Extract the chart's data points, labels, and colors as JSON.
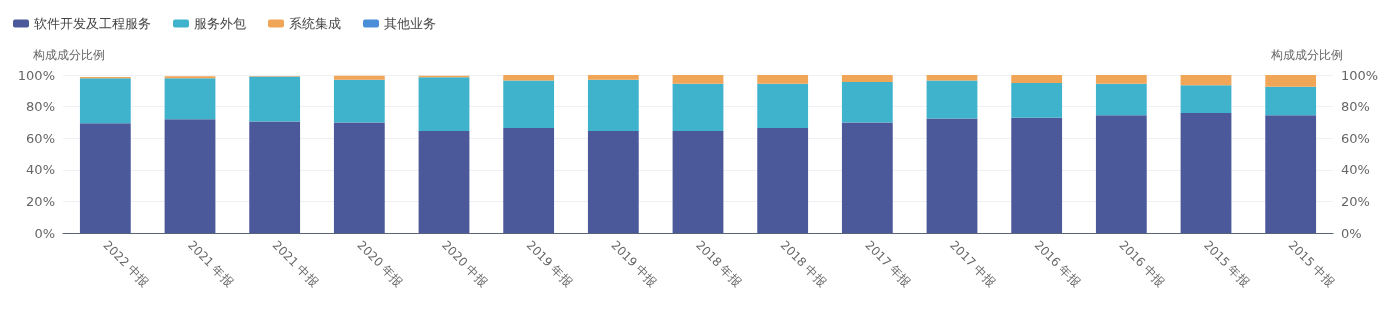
{
  "chart_data": {
    "type": "bar",
    "stacked": true,
    "ylabel": "构成成分比例",
    "y2label": "构成成分比例",
    "categories": [
      "2022 中报",
      "2021 年报",
      "2021 中报",
      "2020 年报",
      "2020 中报",
      "2019 年报",
      "2019 中报",
      "2018 年报",
      "2018 中报",
      "2017 年报",
      "2017 中报",
      "2016 年报",
      "2016 中报",
      "2015 年报",
      "2015 中报"
    ],
    "series": [
      {
        "name": "软件开发及工程服务",
        "color": "#4b5899",
        "values": [
          69.5,
          72,
          70.5,
          70,
          64.5,
          66.5,
          64.5,
          64.5,
          66.5,
          70,
          72.5,
          73,
          74.5,
          76,
          74.5
        ]
      },
      {
        "name": "服务外包",
        "color": "#3fb3cc",
        "values": [
          28.5,
          26,
          28.5,
          27,
          34,
          30,
          32.5,
          30,
          28,
          25.5,
          24,
          22,
          20,
          17.5,
          18
        ]
      },
      {
        "name": "系统集成",
        "color": "#f0a557",
        "values": [
          0.8,
          1.2,
          0.3,
          2.5,
          1,
          3.5,
          3,
          5.5,
          5.5,
          4.5,
          3.5,
          5,
          5.5,
          6.5,
          7.5
        ]
      },
      {
        "name": "其他业务",
        "color": "#4a8ed8",
        "values": [
          0,
          0,
          0,
          0,
          0,
          0,
          0,
          0,
          0,
          0,
          0,
          0,
          0,
          0,
          0
        ]
      }
    ],
    "ylim": [
      0,
      100
    ],
    "yticks": [
      {
        "value": 0,
        "label": "0%"
      },
      {
        "value": 20,
        "label": "20%"
      },
      {
        "value": 40,
        "label": "40%"
      },
      {
        "value": 60,
        "label": "60%"
      },
      {
        "value": 80,
        "label": "80%"
      },
      {
        "value": 100,
        "label": "100%"
      }
    ],
    "y2lim": [
      0,
      100
    ],
    "y2ticks": [
      {
        "value": 0,
        "label": "0%"
      },
      {
        "value": 20,
        "label": "20%"
      },
      {
        "value": 40,
        "label": "40%"
      },
      {
        "value": 60,
        "label": "60%"
      },
      {
        "value": 80,
        "label": "80%"
      },
      {
        "value": 100,
        "label": "100%"
      }
    ],
    "grid": "y",
    "legend": "top left"
  }
}
